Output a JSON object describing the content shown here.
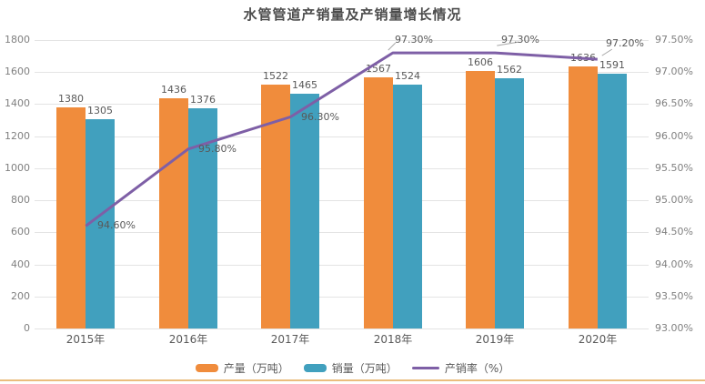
{
  "title": "水管管道产销量及产销量增长情况",
  "legend": {
    "items": [
      {
        "id": "production",
        "label": "产量（万吨）",
        "swatch": "bar",
        "color": "#f08c3c"
      },
      {
        "id": "sales",
        "label": "销量（万吨）",
        "swatch": "bar",
        "color": "#41a0be"
      },
      {
        "id": "ratio",
        "label": "产销率（%）",
        "swatch": "line",
        "color": "#7e5fa6"
      }
    ]
  },
  "chart_data": {
    "type": "bar",
    "subtype": "combo-bar-line",
    "title": "水管管道产销量及产销量增长情况",
    "categories": [
      "2015年",
      "2016年",
      "2017年",
      "2018年",
      "2019年",
      "2020年"
    ],
    "series": [
      {
        "id": "production",
        "name": "产量（万吨）",
        "type": "bar",
        "axis": "left",
        "color": "#f08c3c",
        "values": [
          1380,
          1436,
          1522,
          1567,
          1606,
          1636
        ]
      },
      {
        "id": "sales",
        "name": "销量（万吨）",
        "type": "bar",
        "axis": "left",
        "color": "#41a0be",
        "values": [
          1305,
          1376,
          1465,
          1524,
          1562,
          1591
        ]
      },
      {
        "id": "ratio",
        "name": "产销率（%）",
        "type": "line",
        "axis": "right",
        "color": "#7e5fa6",
        "values": [
          94.6,
          95.8,
          96.3,
          97.3,
          97.3,
          97.2
        ],
        "point_labels": [
          "94.60%",
          "95.80%",
          "96.30%",
          "97.30%",
          "97.30%",
          "97.20%"
        ]
      }
    ],
    "left_axis": {
      "min": 0,
      "max": 1800,
      "step": 200,
      "tick_labels": [
        "1800",
        "1600",
        "1400",
        "1200",
        "1000",
        "800",
        "600",
        "400",
        "200",
        "0"
      ]
    },
    "right_axis": {
      "min": 93.0,
      "max": 97.5,
      "step": 0.5,
      "tick_labels": [
        "97.50%",
        "97.00%",
        "96.50%",
        "96.00%",
        "95.50%",
        "95.00%",
        "94.50%",
        "94.00%",
        "93.50%",
        "93.00%"
      ]
    },
    "grid": true,
    "legend_position": "bottom",
    "bar_value_labels": true
  },
  "colors": {
    "production_bar": "#f08c3c",
    "sales_bar": "#41a0be",
    "ratio_line": "#7e5fa6",
    "gridline": "#e4e4e4",
    "axis_text": "#808080",
    "data_label": "#595959",
    "title_text": "#4d4d4d",
    "leader_line": "#a6a6a6",
    "bottom_rule": "#eabd7d"
  }
}
